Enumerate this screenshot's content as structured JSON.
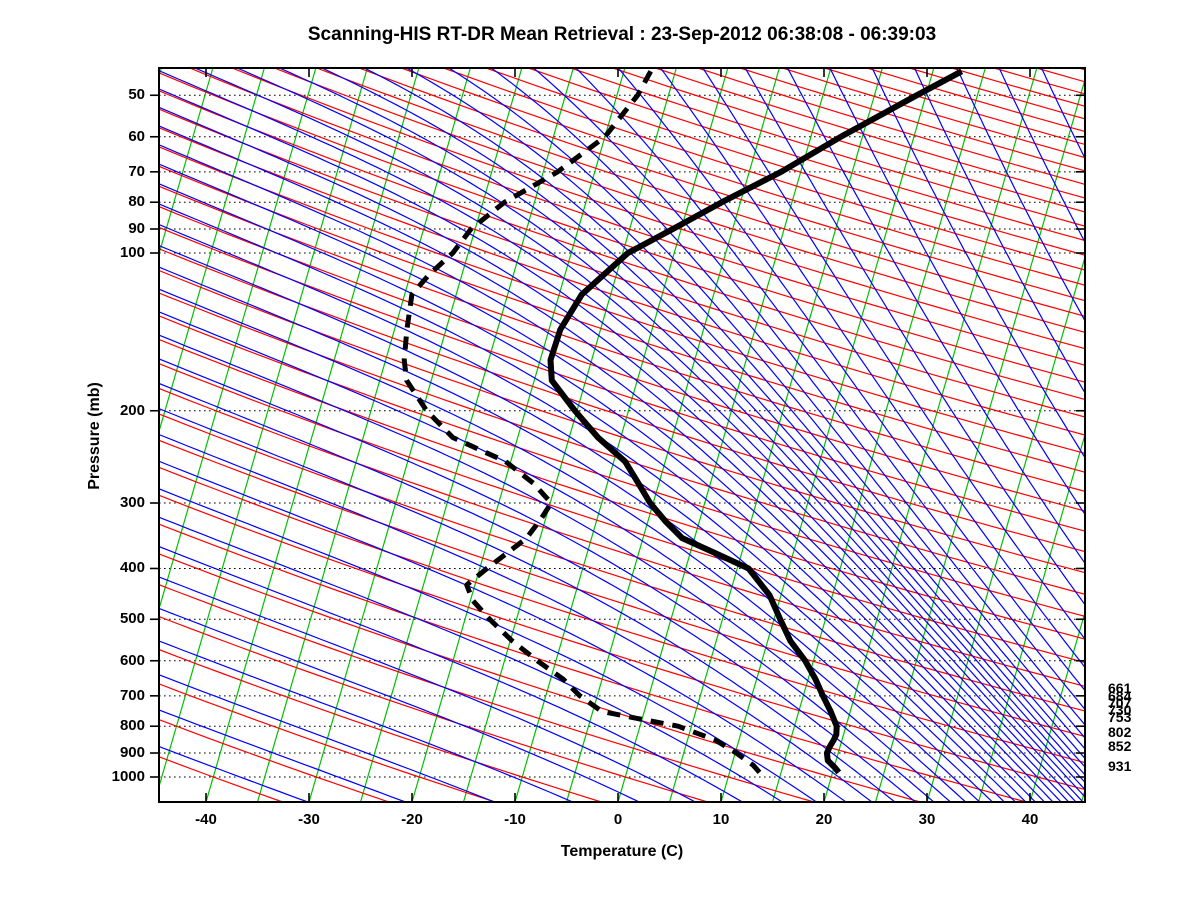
{
  "chart_data": {
    "type": "line",
    "subtype": "skew-t-log-p-sounding",
    "title": "Scanning-HIS RT-DR Mean Retrieval : 23-Sep-2012 06:38:08 - 06:39:03",
    "xlabel": "Temperature (C)",
    "ylabel": "Pressure (mb)",
    "x_ticks": [
      -40,
      -30,
      -20,
      -10,
      0,
      10,
      20,
      30,
      40
    ],
    "y_ticks": [
      50,
      60,
      70,
      80,
      90,
      100,
      200,
      300,
      400,
      500,
      600,
      700,
      800,
      900,
      1000
    ],
    "y_scale": "log",
    "x_axis_range_at_surface_c": [
      -45,
      45
    ],
    "grid": "horizontal-dotted-at-pressure-ticks",
    "legend_position": "none",
    "right_pressure_level_labels": [
      661,
      684,
      707,
      730,
      753,
      802,
      852,
      931
    ],
    "series": [
      {
        "name": "temperature",
        "style": "solid",
        "color": "#000000",
        "points_p_mb_t_c": [
          [
            45,
            12.8
          ],
          [
            50,
            9.1
          ],
          [
            60,
            2.9
          ],
          [
            70,
            -1.9
          ],
          [
            80,
            -6.8
          ],
          [
            90,
            -10.8
          ],
          [
            100,
            -14.5
          ],
          [
            120,
            -17.8
          ],
          [
            140,
            -18.9
          ],
          [
            160,
            -19.0
          ],
          [
            175,
            -18.3
          ],
          [
            200,
            -15.2
          ],
          [
            225,
            -12.2
          ],
          [
            250,
            -8.9
          ],
          [
            275,
            -7.0
          ],
          [
            300,
            -5.3
          ],
          [
            325,
            -3.3
          ],
          [
            350,
            -1.2
          ],
          [
            375,
            2.6
          ],
          [
            400,
            6.1
          ],
          [
            450,
            8.9
          ],
          [
            500,
            10.6
          ],
          [
            550,
            12.2
          ],
          [
            600,
            14.2
          ],
          [
            650,
            15.7
          ],
          [
            700,
            16.9
          ],
          [
            750,
            18.1
          ],
          [
            800,
            19.1
          ],
          [
            830,
            19.3
          ],
          [
            850,
            19.2
          ],
          [
            875,
            19.0
          ],
          [
            900,
            18.9
          ],
          [
            930,
            19.2
          ],
          [
            960,
            20.1
          ],
          [
            980,
            20.6
          ]
        ]
      },
      {
        "name": "dewpoint",
        "style": "dashed",
        "color": "#000000",
        "points_p_mb_t_c": [
          [
            45,
            -17.4
          ],
          [
            50,
            -18.0
          ],
          [
            60,
            -20.0
          ],
          [
            70,
            -23.6
          ],
          [
            80,
            -27.9
          ],
          [
            90,
            -30.4
          ],
          [
            100,
            -31.5
          ],
          [
            110,
            -33.2
          ],
          [
            120,
            -34.3
          ],
          [
            140,
            -33.8
          ],
          [
            160,
            -33.2
          ],
          [
            175,
            -32.4
          ],
          [
            200,
            -29.6
          ],
          [
            225,
            -26.3
          ],
          [
            250,
            -20.5
          ],
          [
            275,
            -17.2
          ],
          [
            300,
            -14.9
          ],
          [
            320,
            -15.4
          ],
          [
            350,
            -16.3
          ],
          [
            400,
            -19.3
          ],
          [
            430,
            -20.8
          ],
          [
            460,
            -19.8
          ],
          [
            500,
            -17.6
          ],
          [
            550,
            -14.8
          ],
          [
            600,
            -11.8
          ],
          [
            650,
            -8.8
          ],
          [
            700,
            -6.7
          ],
          [
            750,
            -4.1
          ],
          [
            775,
            -0.2
          ],
          [
            800,
            3.7
          ],
          [
            850,
            7.7
          ],
          [
            900,
            10.1
          ],
          [
            950,
            12.1
          ],
          [
            980,
            12.9
          ]
        ]
      }
    ],
    "background": {
      "isotherms": {
        "color": "#00c000",
        "min_c": -65,
        "max_c": 45,
        "step_c": 5
      },
      "dry_adiabats": {
        "color": "#ff0000",
        "theta_min_c": -40,
        "theta_max_c": 450,
        "step_c": 10
      },
      "moist_adiabats": {
        "color": "#0000ff",
        "paired_with_dry_adiabats": true
      },
      "gridlines": {
        "color": "#000000",
        "style": "dotted"
      }
    },
    "colors": {
      "profile": "#000000",
      "frame": "#000000",
      "background_page": "#ffffff"
    }
  }
}
